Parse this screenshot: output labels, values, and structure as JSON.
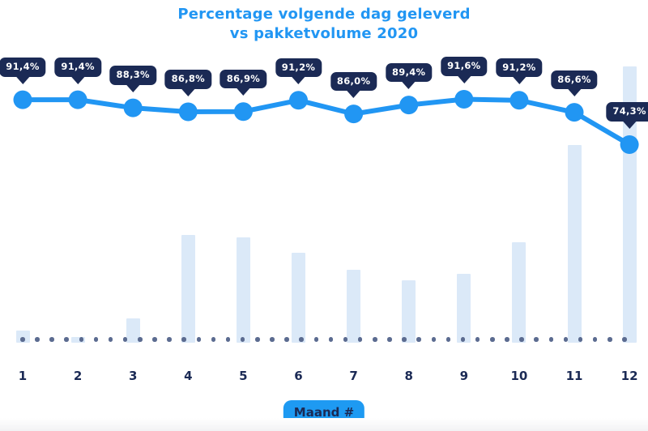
{
  "title": {
    "line1": "Percentage volgende dag geleverd",
    "line2": "vs pakketvolume 2020"
  },
  "x_axis": {
    "badge_label": "Maand #",
    "ticks": [
      "1",
      "2",
      "3",
      "4",
      "5",
      "6",
      "7",
      "8",
      "9",
      "10",
      "11",
      "12"
    ]
  },
  "colors": {
    "accent_blue": "#2196f3",
    "badge_blue": "#1e9af2",
    "navy": "#1b2a55",
    "bar_fill": "#dbe9f8",
    "baseline_dot_gray": "#5b6b90",
    "tooltip_text": "#ffffff",
    "background": "#ffffff"
  },
  "chart_data": {
    "type": "combo",
    "title": "Percentage volgende dag geleverd vs pakketvolume 2020",
    "categories": [
      1,
      2,
      3,
      4,
      5,
      6,
      7,
      8,
      9,
      10,
      11,
      12
    ],
    "xlabel": "Maand #",
    "legend": "none",
    "gridlines": false,
    "baseline_style": "dotted gray line at zero",
    "series": [
      {
        "name": "Percentage volgende dag geleverd",
        "type": "line",
        "unit": "%",
        "axis_range_pct": [
          0,
          100
        ],
        "values": [
          91.4,
          91.4,
          88.3,
          86.8,
          86.9,
          91.2,
          86.0,
          89.4,
          91.6,
          91.2,
          86.6,
          74.3
        ],
        "data_labels": [
          "91,4%",
          "91,4%",
          "88,3%",
          "86,8%",
          "86,9%",
          "91,2%",
          "86,0%",
          "89,4%",
          "91,6%",
          "91,2%",
          "86,6%",
          "74,3%"
        ]
      },
      {
        "name": "Pakketvolume 2020",
        "type": "bar",
        "unit": "relative volume index (no axis shown; largest month = 100)",
        "values": [
          4.4,
          2.1,
          8.8,
          39.0,
          38.1,
          32.6,
          26.4,
          22.6,
          24.9,
          36.4,
          71.6,
          100.0
        ]
      }
    ]
  }
}
